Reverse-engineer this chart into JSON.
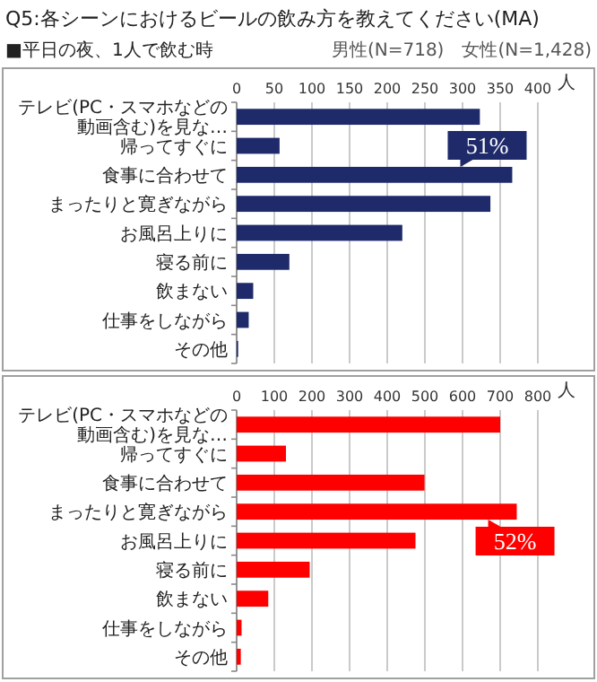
{
  "chart_data": [
    {
      "type": "bar",
      "orientation": "horizontal",
      "title": "Q5:各シーンにおけるビールの飲み方を教えてください(MA)",
      "subtitle": "男性(N=718)　女性(N=1,428)",
      "xlabel": "人",
      "annotations": [
        "■平日の夜、1人で飲む時",
        {
          "text": "51%",
          "x": 297,
          "y": "食事に合わせて"
        }
      ],
      "categories": [
        "テレビ(PC・スマホなどの動画含む)を見な…",
        "帰ってすぐに",
        "食事に合わせて",
        "まったりと寛ぎながら",
        "お風呂上りに",
        "寝る前に",
        "飲まない",
        "仕事をしながら",
        "その他"
      ],
      "values": [
        323,
        57,
        366,
        337,
        220,
        70,
        22,
        16,
        2
      ],
      "color": "#1f2a6b",
      "xlim": [
        0,
        400
      ],
      "xticks": [
        0,
        50,
        100,
        150,
        200,
        250,
        300,
        350,
        400
      ],
      "grid": "x"
    },
    {
      "type": "bar",
      "orientation": "horizontal",
      "xlabel": "人",
      "annotations": [
        {
          "text": "52%",
          "x": 668,
          "y": "まったりと寛ぎながら"
        }
      ],
      "categories": [
        "テレビ(PC・スマホなどの動画含む)を見な…",
        "帰ってすぐに",
        "食事に合わせて",
        "まったりと寛ぎながら",
        "お風呂上りに",
        "寝る前に",
        "飲まない",
        "仕事をしながら",
        "その他"
      ],
      "values": [
        700,
        131,
        499,
        744,
        475,
        194,
        84,
        13,
        11
      ],
      "color": "#ff0000",
      "xlim": [
        0,
        800
      ],
      "xticks": [
        0,
        100,
        200,
        300,
        400,
        500,
        600,
        700,
        800
      ],
      "grid": "x"
    }
  ]
}
